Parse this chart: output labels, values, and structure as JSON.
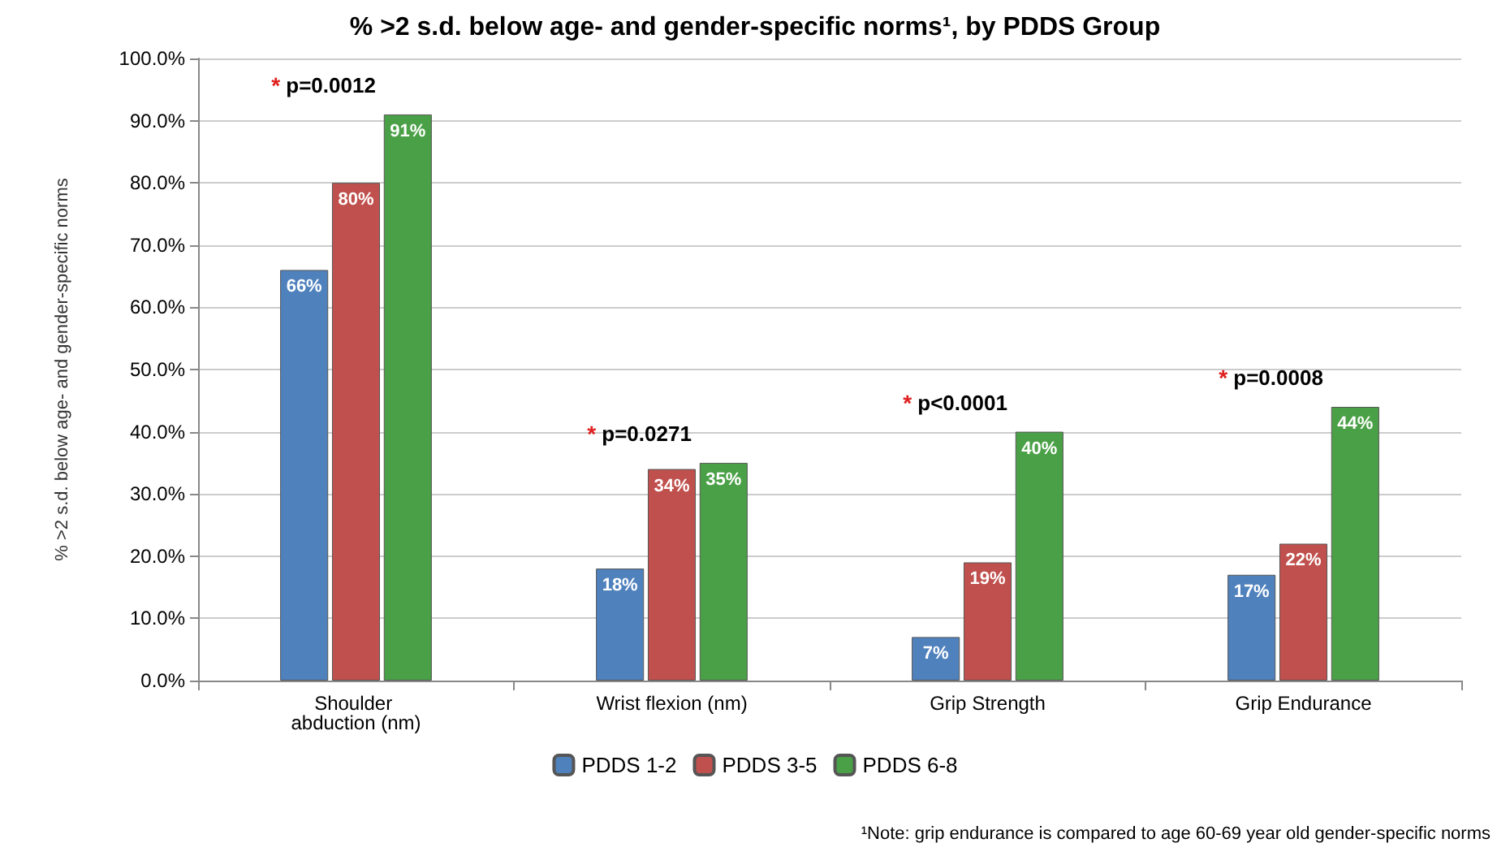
{
  "chart_data": {
    "type": "bar",
    "title": "% >2 s.d. below age- and gender-specific norms¹, by PDDS Group",
    "ylabel": "% >2 s.d. below age- and gender-specific norms",
    "categories": [
      "Shoulder abduction (nm)",
      "Wrist flexion (nm)",
      "Grip Strength",
      "Grip Endurance"
    ],
    "series": [
      {
        "name": "PDDS 1-2",
        "color": "#4f81bd",
        "values": [
          66,
          18,
          7,
          17
        ],
        "value_labels": [
          "66%",
          "18%",
          "7%",
          "17%"
        ]
      },
      {
        "name": "PDDS 3-5",
        "color": "#c0504d",
        "values": [
          80,
          34,
          19,
          22
        ],
        "value_labels": [
          "80%",
          "34%",
          "19%",
          "22%"
        ]
      },
      {
        "name": "PDDS 6-8",
        "color": "#4aa046",
        "values": [
          91,
          35,
          40,
          44
        ],
        "value_labels": [
          "91%",
          "35%",
          "40%",
          "44%"
        ]
      }
    ],
    "ylim": [
      0,
      100
    ],
    "yticks": [
      {
        "value": 0,
        "label": "0.0%"
      },
      {
        "value": 10,
        "label": "10.0%"
      },
      {
        "value": 20,
        "label": "20.0%"
      },
      {
        "value": 30,
        "label": "30.0%"
      },
      {
        "value": 40,
        "label": "40.0%"
      },
      {
        "value": 50,
        "label": "50.0%"
      },
      {
        "value": 60,
        "label": "60.0%"
      },
      {
        "value": 70,
        "label": "70.0%"
      },
      {
        "value": 80,
        "label": "80.0%"
      },
      {
        "value": 90,
        "label": "90.0%"
      },
      {
        "value": 100,
        "label": "100.0%"
      }
    ],
    "grid": "y",
    "legend": "bottom",
    "annotations": [
      "* p=0.0012",
      "* p=0.0271",
      "* p<0.0001",
      "* p=0.0008",
      "¹Note: grip endurance is compared to age 60-69 year old gender-specific norms"
    ]
  }
}
